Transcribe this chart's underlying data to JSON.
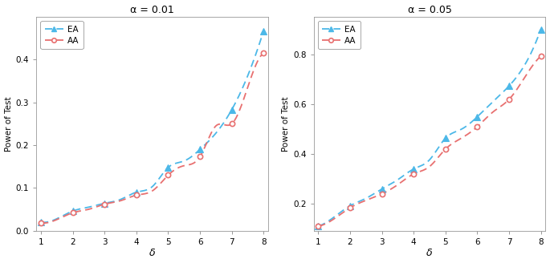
{
  "plot1": {
    "title": "α = 0.01",
    "xlabel": "δ",
    "ylabel": "Power of Test",
    "xlim": [
      0.85,
      8.15
    ],
    "ylim": [
      0.0,
      0.5
    ],
    "yticks": [
      0.0,
      0.1,
      0.2,
      0.3,
      0.4
    ],
    "xticks": [
      1,
      2,
      3,
      4,
      5,
      6,
      7,
      8
    ],
    "EA_x": [
      1,
      1.5,
      2,
      2.5,
      3,
      3.5,
      4,
      4.5,
      5,
      5.5,
      6,
      6.5,
      7,
      7.5,
      8
    ],
    "EA_y": [
      0.02,
      0.028,
      0.046,
      0.055,
      0.064,
      0.073,
      0.09,
      0.103,
      0.148,
      0.163,
      0.19,
      0.228,
      0.283,
      0.362,
      0.467
    ],
    "AA_x": [
      1,
      1.5,
      2,
      2.5,
      3,
      3.5,
      4,
      4.5,
      5,
      5.5,
      6,
      6.5,
      7,
      7.5,
      8
    ],
    "AA_y": [
      0.018,
      0.026,
      0.042,
      0.05,
      0.062,
      0.07,
      0.083,
      0.093,
      0.13,
      0.152,
      0.173,
      0.245,
      0.25,
      0.335,
      0.415
    ],
    "EA_marker_x": [
      1,
      2,
      3,
      4,
      5,
      6,
      7,
      8
    ],
    "EA_marker_y": [
      0.02,
      0.046,
      0.064,
      0.09,
      0.148,
      0.19,
      0.283,
      0.467
    ],
    "AA_marker_x": [
      1,
      2,
      3,
      4,
      5,
      6,
      7,
      8
    ],
    "AA_marker_y": [
      0.018,
      0.042,
      0.062,
      0.083,
      0.13,
      0.173,
      0.25,
      0.415
    ]
  },
  "plot2": {
    "title": "α = 0.05",
    "xlabel": "δ",
    "ylabel": "Power of Test",
    "xlim": [
      0.85,
      8.15
    ],
    "ylim": [
      0.09,
      0.95
    ],
    "yticks": [
      0.2,
      0.4,
      0.6,
      0.8
    ],
    "xticks": [
      1,
      2,
      3,
      4,
      5,
      6,
      7,
      8
    ],
    "EA_x": [
      1,
      1.5,
      2,
      2.5,
      3,
      3.5,
      4,
      4.5,
      5,
      5.5,
      6,
      6.5,
      7,
      7.5,
      8
    ],
    "EA_y": [
      0.108,
      0.145,
      0.19,
      0.22,
      0.258,
      0.295,
      0.338,
      0.375,
      0.462,
      0.498,
      0.548,
      0.61,
      0.672,
      0.758,
      0.9
    ],
    "AA_x": [
      1,
      1.5,
      2,
      2.5,
      3,
      3.5,
      4,
      4.5,
      5,
      5.5,
      6,
      6.5,
      7,
      7.5,
      8
    ],
    "AA_y": [
      0.108,
      0.138,
      0.182,
      0.212,
      0.238,
      0.275,
      0.318,
      0.348,
      0.418,
      0.462,
      0.508,
      0.568,
      0.618,
      0.708,
      0.792
    ],
    "EA_marker_x": [
      1,
      2,
      3,
      4,
      5,
      6,
      7,
      8
    ],
    "EA_marker_y": [
      0.108,
      0.19,
      0.258,
      0.338,
      0.462,
      0.548,
      0.672,
      0.9
    ],
    "AA_marker_x": [
      1,
      2,
      3,
      4,
      5,
      6,
      7,
      8
    ],
    "AA_marker_y": [
      0.108,
      0.182,
      0.238,
      0.318,
      0.418,
      0.508,
      0.618,
      0.792
    ]
  },
  "EA_color": "#4CB8E8",
  "AA_color": "#E87070",
  "bg_color": "#FFFFFF"
}
